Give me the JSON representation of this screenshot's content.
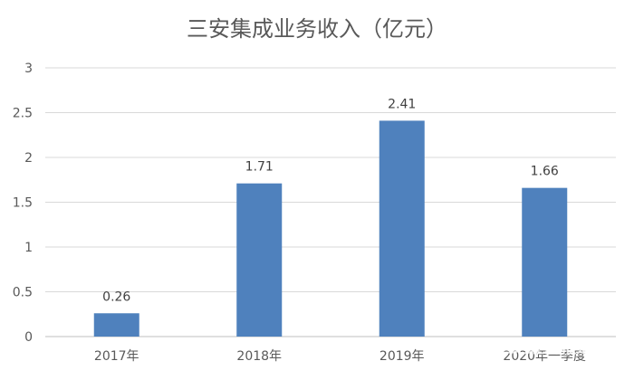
{
  "chart_data": {
    "type": "bar",
    "title": "三安集成业务收入（亿元）",
    "categories": [
      "2017年",
      "2018年",
      "2019年",
      "2020年一季度"
    ],
    "values": [
      0.26,
      1.71,
      2.41,
      1.66
    ],
    "data_labels": [
      "0.26",
      "1.71",
      "2.41",
      "1.66"
    ],
    "ylim": [
      0,
      3
    ],
    "yticks": [
      0,
      0.5,
      1,
      1.5,
      2,
      2.5,
      3
    ],
    "ytick_labels": [
      "0",
      "0.5",
      "1",
      "1.5",
      "2",
      "2.5",
      "3"
    ],
    "grid": true,
    "legend": "none",
    "bar_color": "#4f81bd"
  },
  "watermark": "21世纪经济报道"
}
